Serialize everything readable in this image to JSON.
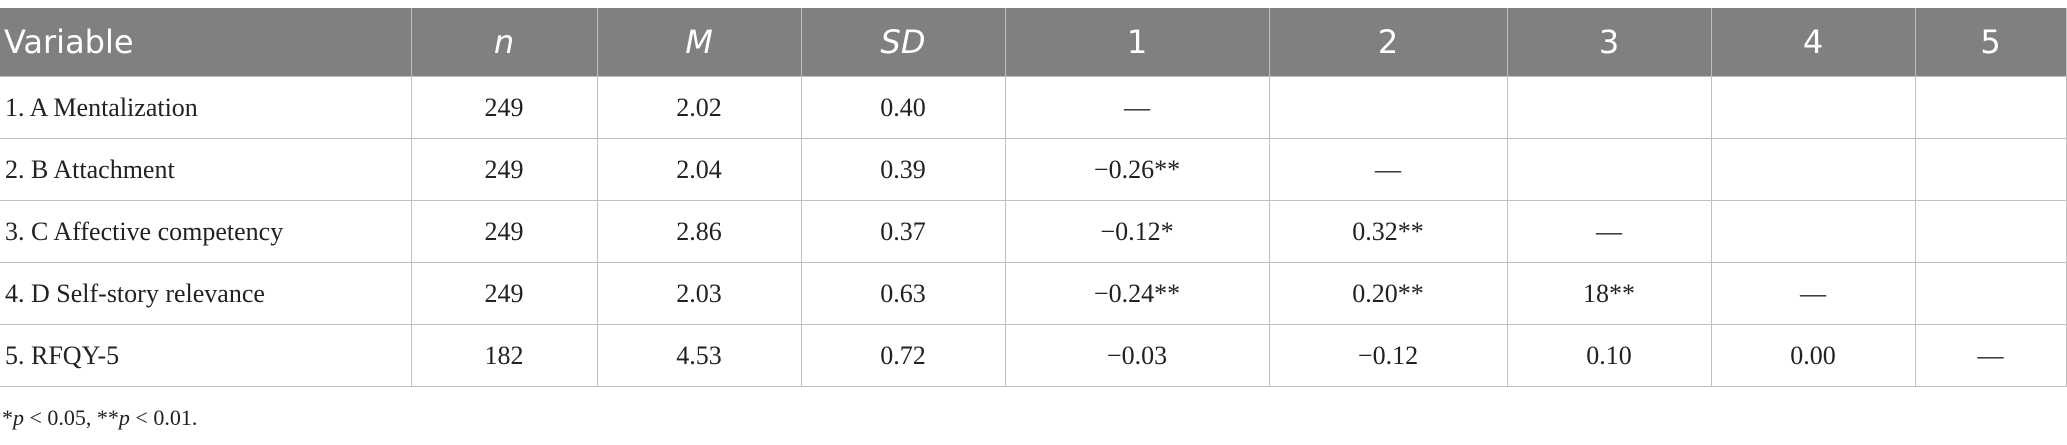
{
  "table": {
    "headers": [
      "Variable",
      "n",
      "M",
      "SD",
      "1",
      "2",
      "3",
      "4",
      "5"
    ],
    "rows": [
      [
        "1. A Mentalization",
        "249",
        "2.02",
        "0.40",
        "—",
        "",
        "",
        "",
        ""
      ],
      [
        "2. B Attachment",
        "249",
        "2.04",
        "0.39",
        "−0.26**",
        "—",
        "",
        "",
        ""
      ],
      [
        "3. C Affective competency",
        "249",
        "2.86",
        "0.37",
        "−0.12*",
        "0.32**",
        "—",
        "",
        ""
      ],
      [
        "4. D Self-story relevance",
        "249",
        "2.03",
        "0.63",
        "−0.24**",
        "0.20**",
        "18**",
        "—",
        ""
      ],
      [
        "5. RFQY-5",
        "182",
        "4.53",
        "0.72",
        "−0.03",
        "−0.12",
        "0.10",
        "0.00",
        "—"
      ]
    ]
  },
  "footnote": {
    "star1": "*",
    "p1": "p",
    "text1": " < 0.05, **",
    "p2": "p",
    "text2": " < 0.01."
  }
}
